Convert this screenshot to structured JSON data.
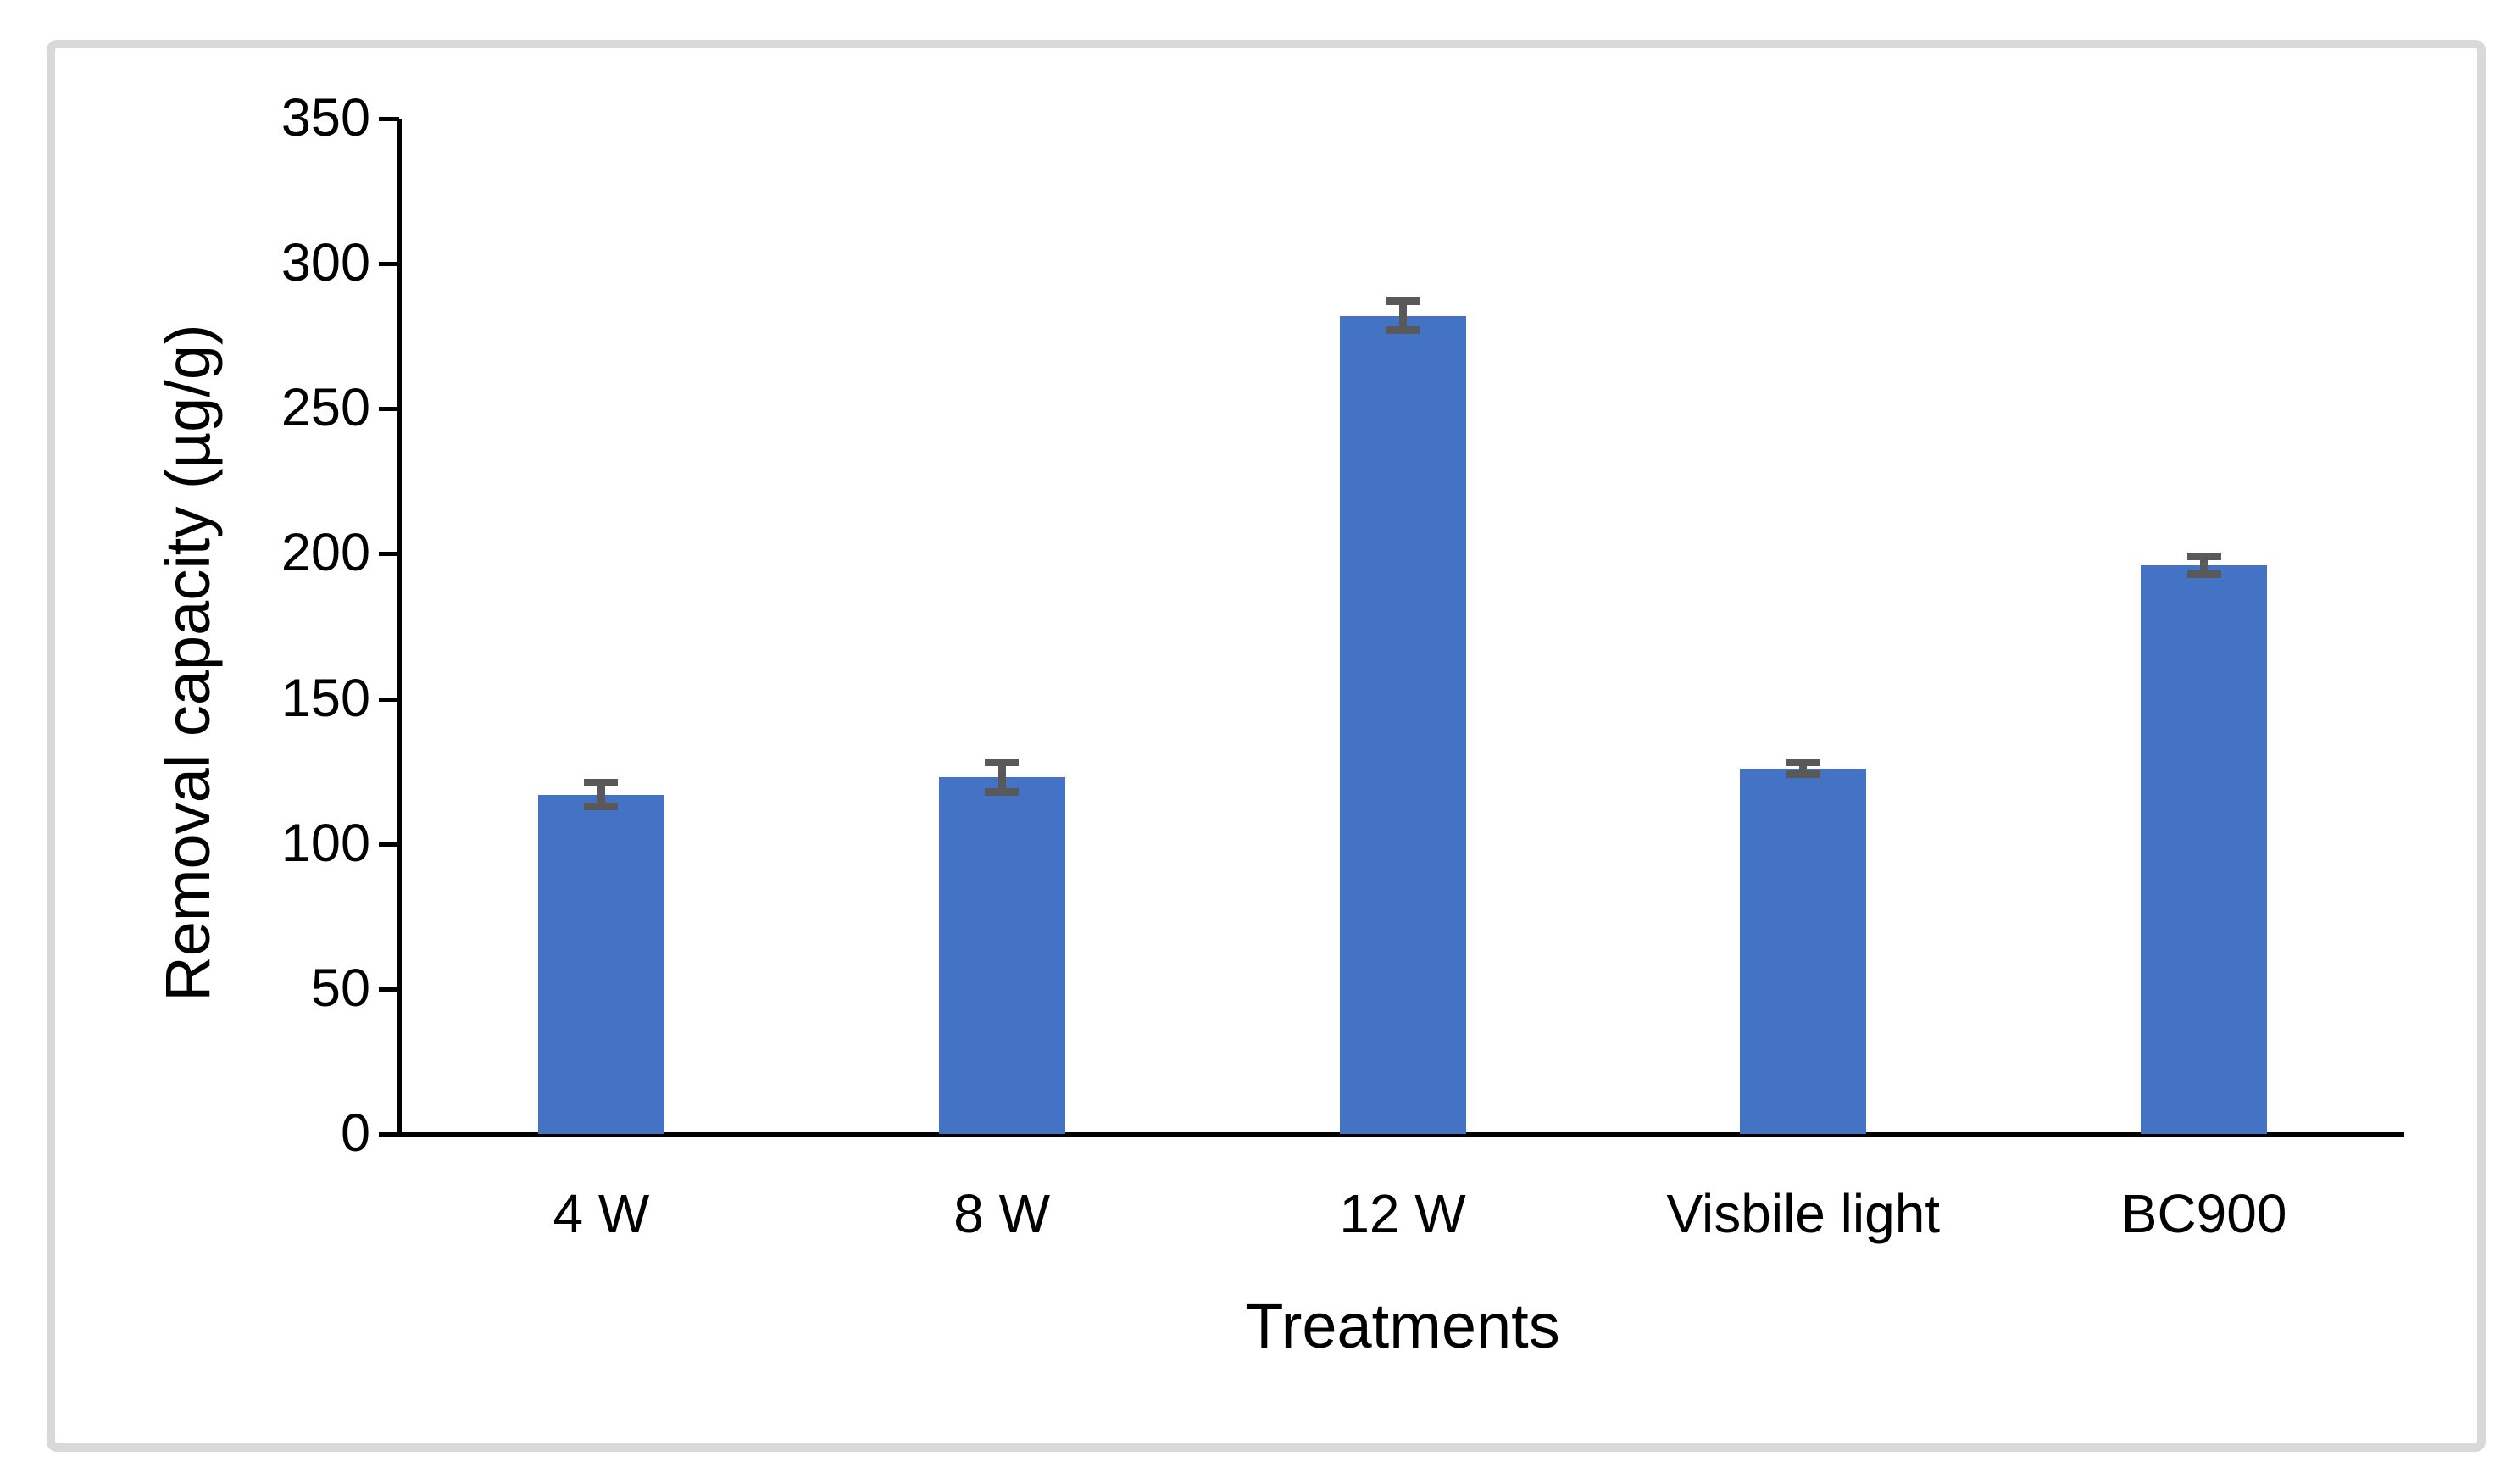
{
  "figure": {
    "frame_border_color": "#d9d9d9",
    "background_color": "#ffffff"
  },
  "chart_data": {
    "type": "bar",
    "title": "",
    "xlabel": "Treatments",
    "ylabel": "Removal capacity (µg/g)",
    "categories": [
      "4 W",
      "8 W",
      "12 W",
      "Visbile light",
      "BC900"
    ],
    "values": [
      117,
      123,
      282,
      126,
      196
    ],
    "error_bars": [
      4,
      5,
      5,
      2,
      3
    ],
    "yticks": [
      0,
      50,
      100,
      150,
      200,
      250,
      300,
      350
    ],
    "ylim": [
      0,
      350
    ],
    "grid": false,
    "legend": "none",
    "bar_color": "#4472c4",
    "error_bar_color": "#595959",
    "axis_color": "#000000"
  }
}
